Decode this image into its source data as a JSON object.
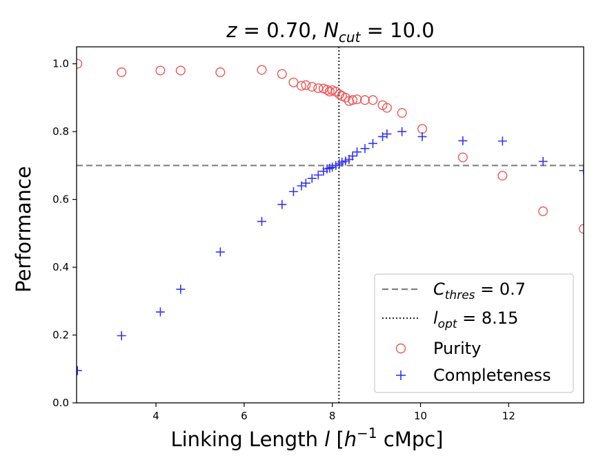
{
  "chart_data": {
    "type": "scatter",
    "title": {
      "z_symbol": "z",
      "z_value": " = 0.70, ",
      "n_symbol": "N",
      "n_subscript": "cut",
      "n_value": " = 10.0"
    },
    "xlabel": {
      "prefix": "Linking Length ",
      "l_symbol": "l",
      "open": " [",
      "h_symbol": "h",
      "h_exp": "−1",
      "suffix": " cMpc]"
    },
    "ylabel": "Performance",
    "xlim": [
      2.2,
      13.7
    ],
    "ylim": [
      0.0,
      1.05
    ],
    "xticks": [
      4,
      6,
      8,
      10,
      12
    ],
    "xtick_labels": [
      "4",
      "6",
      "8",
      "10",
      "12"
    ],
    "yticks": [
      0.0,
      0.2,
      0.4,
      0.6,
      0.8,
      1.0
    ],
    "ytick_labels": [
      "0.0",
      "0.2",
      "0.4",
      "0.6",
      "0.8",
      "1.0"
    ],
    "c_thres": 0.7,
    "l_opt": 8.15,
    "legend": {
      "position": "lower-right",
      "c_thres_symbol": "C",
      "c_thres_subscript": "thres",
      "c_thres_text": " = 0.7",
      "l_opt_symbol": "l",
      "l_opt_subscript": "opt",
      "l_opt_text": " = 8.15",
      "purity_label": "Purity",
      "completeness_label": "Completeness"
    },
    "colors": {
      "purity": "#ee5555",
      "completeness": "#3333ee",
      "threshold_line": "#808080",
      "opt_line": "#333333"
    },
    "series": [
      {
        "name": "Purity",
        "marker": "circle",
        "x": [
          2.22,
          3.22,
          4.1,
          4.56,
          5.46,
          6.4,
          6.86,
          7.12,
          7.3,
          7.4,
          7.54,
          7.68,
          7.8,
          7.88,
          7.94,
          8.0,
          8.08,
          8.16,
          8.22,
          8.3,
          8.38,
          8.46,
          8.56,
          8.74,
          8.92,
          9.14,
          9.24,
          9.58,
          10.04,
          10.96,
          11.86,
          12.78,
          13.7
        ],
        "y": [
          1.0,
          0.975,
          0.98,
          0.98,
          0.975,
          0.982,
          0.97,
          0.945,
          0.935,
          0.937,
          0.932,
          0.928,
          0.927,
          0.923,
          0.918,
          0.922,
          0.918,
          0.91,
          0.905,
          0.9,
          0.89,
          0.893,
          0.895,
          0.893,
          0.893,
          0.878,
          0.87,
          0.855,
          0.808,
          0.724,
          0.67,
          0.565,
          0.513
        ]
      },
      {
        "name": "Completeness",
        "marker": "plus",
        "x": [
          2.22,
          3.22,
          4.1,
          4.56,
          5.46,
          6.4,
          6.86,
          7.12,
          7.3,
          7.4,
          7.54,
          7.68,
          7.8,
          7.88,
          7.94,
          8.0,
          8.08,
          8.16,
          8.22,
          8.3,
          8.38,
          8.46,
          8.56,
          8.74,
          8.92,
          9.14,
          9.24,
          9.58,
          10.04,
          10.96,
          11.86,
          12.78,
          13.7
        ],
        "y": [
          0.095,
          0.198,
          0.268,
          0.335,
          0.445,
          0.535,
          0.585,
          0.623,
          0.64,
          0.648,
          0.662,
          0.672,
          0.683,
          0.69,
          0.692,
          0.695,
          0.7,
          0.705,
          0.71,
          0.713,
          0.718,
          0.728,
          0.74,
          0.75,
          0.765,
          0.785,
          0.793,
          0.8,
          0.785,
          0.773,
          0.772,
          0.712,
          0.685
        ]
      }
    ]
  }
}
